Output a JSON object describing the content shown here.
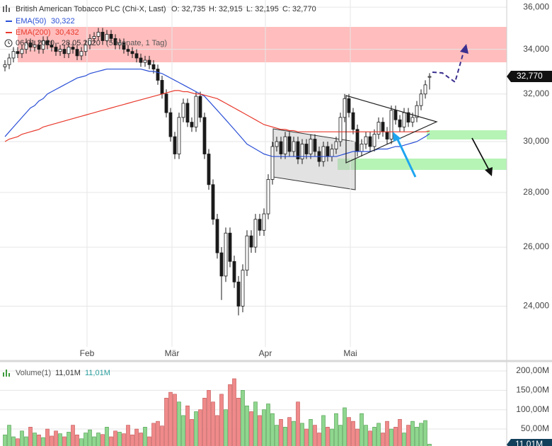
{
  "chart_data": [
    {
      "type": "candlestick",
      "title": "British American Tobacco PLC (Chi-X, Last)",
      "ohlc_labels": [
        "O: 32,735",
        "H: 32,915",
        "L: 32,195",
        "C: 32,770"
      ],
      "date_range": "06.01.2020 - 28.05.2020",
      "period": "(5 Monate, 1 Tag)",
      "categories": [
        null,
        null,
        null,
        null,
        null,
        null,
        null,
        null,
        null,
        null,
        null,
        null,
        null,
        null,
        null,
        null,
        null,
        null,
        null,
        null,
        "Feb",
        null,
        null,
        null,
        null,
        null,
        null,
        null,
        null,
        null,
        null,
        null,
        null,
        null,
        null,
        null,
        null,
        null,
        null,
        null,
        "Mär",
        null,
        null,
        null,
        null,
        null,
        null,
        null,
        null,
        null,
        null,
        null,
        null,
        null,
        null,
        null,
        null,
        null,
        null,
        null,
        null,
        null,
        "Apr",
        null,
        null,
        null,
        null,
        null,
        null,
        null,
        null,
        null,
        null,
        null,
        null,
        null,
        null,
        null,
        null,
        null,
        null,
        null,
        "Mai",
        null,
        null,
        null,
        null,
        null,
        null,
        null,
        null,
        null,
        null,
        null,
        null,
        null,
        null,
        null,
        null,
        null,
        null
      ],
      "open": [
        33.2,
        33.3,
        33.6,
        33.9,
        33.8,
        34.0,
        34.3,
        34.1,
        34.2,
        34.0,
        34.4,
        34.2,
        34.1,
        33.9,
        34.0,
        33.8,
        34.1,
        34.0,
        33.7,
        33.9,
        34.2,
        34.5,
        34.6,
        34.8,
        34.4,
        34.7,
        34.5,
        34.2,
        34.3,
        34.0,
        33.9,
        33.8,
        33.6,
        33.4,
        33.5,
        33.3,
        33.1,
        32.6,
        32.0,
        31.2,
        30.2,
        29.5,
        31.0,
        31.6,
        30.8,
        30.6,
        31.9,
        31.0,
        29.5,
        28.3,
        27.0,
        25.8,
        25.0,
        26.5,
        25.5,
        24.8,
        24.0,
        25.2,
        26.4,
        26.0,
        27.0,
        26.6,
        27.2,
        28.5,
        29.8,
        30.0,
        29.5,
        30.2,
        29.6,
        30.0,
        29.3,
        29.9,
        29.5,
        30.1,
        29.6,
        29.2,
        29.8,
        29.4,
        29.7,
        30.0,
        31.0,
        31.8,
        31.2,
        30.5,
        29.6,
        29.9,
        30.2,
        29.8,
        30.3,
        30.8,
        30.4,
        30.1,
        31.3,
        30.9,
        30.6,
        31.2,
        30.8,
        31.0,
        31.5,
        32.0,
        32.735
      ],
      "high": [
        33.5,
        33.8,
        34.1,
        34.1,
        34.2,
        34.5,
        34.5,
        34.4,
        34.4,
        34.6,
        34.6,
        34.4,
        34.3,
        34.2,
        34.2,
        34.3,
        34.3,
        34.2,
        34.1,
        34.4,
        34.7,
        34.8,
        35.0,
        35.0,
        34.9,
        34.9,
        34.7,
        34.5,
        34.5,
        34.2,
        34.1,
        34.0,
        33.8,
        33.7,
        33.7,
        33.5,
        33.3,
        32.8,
        32.2,
        31.4,
        30.4,
        31.2,
        31.8,
        31.8,
        31.0,
        32.1,
        32.1,
        31.2,
        29.7,
        28.5,
        27.2,
        26.0,
        26.7,
        26.7,
        25.7,
        25.0,
        25.4,
        26.6,
        26.6,
        27.2,
        27.2,
        27.4,
        28.7,
        30.0,
        30.2,
        30.2,
        30.4,
        30.4,
        30.2,
        30.2,
        30.1,
        30.1,
        30.3,
        30.3,
        29.8,
        30.0,
        30.0,
        29.9,
        30.2,
        31.2,
        32.0,
        32.0,
        31.4,
        30.7,
        30.1,
        30.4,
        30.4,
        30.5,
        31.0,
        31.0,
        30.6,
        31.5,
        31.5,
        31.1,
        31.4,
        31.4,
        31.2,
        31.7,
        32.2,
        32.6,
        32.915
      ],
      "low": [
        33.0,
        33.1,
        33.4,
        33.6,
        33.6,
        33.8,
        33.9,
        33.9,
        33.8,
        33.8,
        34.0,
        33.9,
        33.7,
        33.7,
        33.6,
        33.6,
        33.8,
        33.5,
        33.5,
        33.7,
        34.0,
        34.3,
        34.4,
        34.2,
        34.2,
        34.3,
        34.0,
        34.0,
        33.8,
        33.7,
        33.6,
        33.4,
        33.2,
        33.2,
        33.1,
        32.9,
        32.4,
        31.8,
        31.0,
        30.0,
        29.3,
        29.3,
        30.8,
        30.6,
        30.4,
        30.4,
        30.8,
        29.3,
        28.1,
        26.8,
        25.6,
        24.2,
        24.8,
        25.3,
        24.6,
        23.7,
        23.8,
        25.0,
        25.8,
        25.8,
        26.4,
        26.4,
        27.0,
        28.3,
        29.6,
        29.3,
        29.3,
        29.4,
        29.4,
        29.1,
        29.1,
        29.3,
        29.3,
        29.4,
        29.0,
        29.0,
        29.2,
        29.2,
        29.5,
        29.8,
        30.8,
        31.0,
        30.3,
        29.4,
        29.4,
        29.7,
        29.6,
        29.6,
        30.1,
        30.2,
        29.9,
        29.9,
        30.7,
        30.4,
        30.4,
        30.6,
        30.6,
        30.8,
        31.3,
        31.8,
        32.195
      ],
      "close": [
        33.3,
        33.6,
        33.9,
        33.8,
        34.0,
        34.3,
        34.1,
        34.2,
        34.0,
        34.4,
        34.2,
        34.1,
        33.9,
        34.0,
        33.8,
        34.1,
        34.0,
        33.7,
        33.9,
        34.2,
        34.5,
        34.6,
        34.8,
        34.4,
        34.7,
        34.5,
        34.2,
        34.3,
        34.0,
        33.9,
        33.8,
        33.6,
        33.4,
        33.5,
        33.3,
        33.1,
        32.6,
        32.0,
        31.2,
        30.2,
        29.5,
        31.0,
        31.6,
        30.8,
        30.6,
        31.9,
        31.0,
        29.5,
        28.3,
        27.0,
        25.8,
        25.0,
        26.5,
        25.5,
        24.8,
        24.0,
        25.2,
        26.4,
        26.0,
        27.0,
        26.6,
        27.2,
        28.5,
        29.8,
        30.0,
        29.5,
        30.2,
        29.6,
        30.0,
        29.3,
        29.9,
        29.5,
        30.1,
        29.6,
        29.2,
        29.8,
        29.4,
        29.7,
        30.0,
        31.0,
        31.8,
        31.2,
        30.5,
        29.6,
        29.9,
        30.2,
        29.8,
        30.3,
        30.8,
        30.4,
        30.1,
        31.3,
        30.9,
        30.6,
        31.2,
        30.8,
        31.0,
        31.5,
        32.0,
        32.4,
        32.77
      ],
      "last_label": "32,770",
      "up_color": "#ffffff",
      "down_color": "#1a1a1a",
      "series": [
        {
          "name": "EMA(50)",
          "color": "#2a4fd6",
          "last_label": "30,322",
          "values": [
            30.2,
            30.4,
            30.6,
            30.8,
            31.0,
            31.2,
            31.4,
            31.5,
            31.7,
            31.8,
            32.0,
            32.1,
            32.2,
            32.3,
            32.4,
            32.5,
            32.6,
            32.7,
            32.75,
            32.8,
            32.9,
            32.95,
            33.0,
            33.05,
            33.1,
            33.1,
            33.1,
            33.1,
            33.1,
            33.1,
            33.1,
            33.1,
            33.1,
            33.05,
            33.0,
            33.0,
            32.95,
            32.9,
            32.8,
            32.7,
            32.6,
            32.5,
            32.4,
            32.3,
            32.2,
            32.1,
            32.0,
            31.9,
            31.7,
            31.5,
            31.3,
            31.1,
            30.9,
            30.7,
            30.5,
            30.3,
            30.1,
            29.9,
            29.8,
            29.7,
            29.6,
            29.5,
            29.45,
            29.4,
            29.4,
            29.4,
            29.4,
            29.4,
            29.4,
            29.4,
            29.4,
            29.4,
            29.4,
            29.4,
            29.4,
            29.4,
            29.4,
            29.4,
            29.4,
            29.45,
            29.5,
            29.55,
            29.6,
            29.6,
            29.6,
            29.6,
            29.6,
            29.65,
            29.7,
            29.7,
            29.7,
            29.75,
            29.8,
            29.8,
            29.85,
            29.9,
            29.95,
            30.0,
            30.1,
            30.2,
            30.322
          ]
        },
        {
          "name": "EMA(200)",
          "color": "#e8392c",
          "last_label": "30,432",
          "values": [
            30.0,
            30.1,
            30.15,
            30.2,
            30.3,
            30.35,
            30.4,
            30.45,
            30.5,
            30.6,
            30.65,
            30.7,
            30.75,
            30.8,
            30.85,
            30.9,
            30.95,
            31.0,
            31.05,
            31.1,
            31.15,
            31.2,
            31.25,
            31.3,
            31.35,
            31.4,
            31.45,
            31.5,
            31.55,
            31.6,
            31.65,
            31.7,
            31.75,
            31.8,
            31.85,
            31.9,
            31.95,
            32.0,
            32.05,
            32.1,
            32.15,
            32.15,
            32.1,
            32.1,
            32.05,
            32.0,
            32.0,
            31.95,
            31.9,
            31.85,
            31.8,
            31.7,
            31.6,
            31.5,
            31.4,
            31.3,
            31.2,
            31.1,
            31.0,
            30.9,
            30.8,
            30.7,
            30.65,
            30.6,
            30.55,
            30.5,
            30.5,
            30.45,
            30.45,
            30.4,
            30.4,
            30.4,
            30.4,
            30.4,
            30.4,
            30.4,
            30.4,
            30.4,
            30.4,
            30.4,
            30.4,
            30.4,
            30.4,
            30.4,
            30.4,
            30.4,
            30.4,
            30.4,
            30.4,
            30.4,
            30.4,
            30.4,
            30.4,
            30.4,
            30.4,
            30.4,
            30.4,
            30.4,
            30.4,
            30.4,
            30.432
          ]
        }
      ],
      "ylim": [
        22.71,
        36.35
      ],
      "yticks": [
        {
          "value": 24,
          "label": "24,000"
        },
        {
          "value": 26,
          "label": "26,000"
        },
        {
          "value": 28,
          "label": "28,000"
        },
        {
          "value": 30,
          "label": "30,000"
        },
        {
          "value": 32,
          "label": "32,000"
        },
        {
          "value": 34,
          "label": "34,000"
        },
        {
          "value": 36,
          "label": "36,000"
        }
      ],
      "log_scale": true,
      "grid": true
    },
    {
      "type": "bar",
      "title": "Volume(1)",
      "legend_values": [
        "11,01M",
        "11,01M"
      ],
      "values": [
        35,
        60,
        30,
        25,
        45,
        30,
        55,
        40,
        35,
        28,
        50,
        32,
        45,
        38,
        30,
        42,
        60,
        35,
        25,
        40,
        48,
        30,
        40,
        36,
        55,
        30,
        45,
        42,
        38,
        60,
        35,
        50,
        40,
        55,
        30,
        65,
        70,
        58,
        130,
        145,
        140,
        120,
        85,
        110,
        75,
        95,
        100,
        130,
        150,
        120,
        85,
        140,
        100,
        165,
        180,
        130,
        150,
        110,
        95,
        120,
        85,
        100,
        115,
        90,
        60,
        75,
        55,
        80,
        70,
        120,
        65,
        50,
        75,
        60,
        40,
        85,
        55,
        50,
        90,
        60,
        105,
        80,
        70,
        50,
        90,
        60,
        45,
        55,
        65,
        40,
        70,
        50,
        55,
        75,
        40,
        60,
        70,
        55,
        65,
        72,
        11.01
      ],
      "last_label": "11,01M",
      "up_color": "#8fd68f",
      "down_color": "#f08a8a",
      "ylim": [
        0,
        222
      ],
      "yticks": [
        {
          "value": 50,
          "label": "50,00M"
        },
        {
          "value": 100,
          "label": "100,00M"
        },
        {
          "value": 150,
          "label": "150,00M"
        },
        {
          "value": 200,
          "label": "200,00M"
        }
      ],
      "grid": true
    }
  ]
}
